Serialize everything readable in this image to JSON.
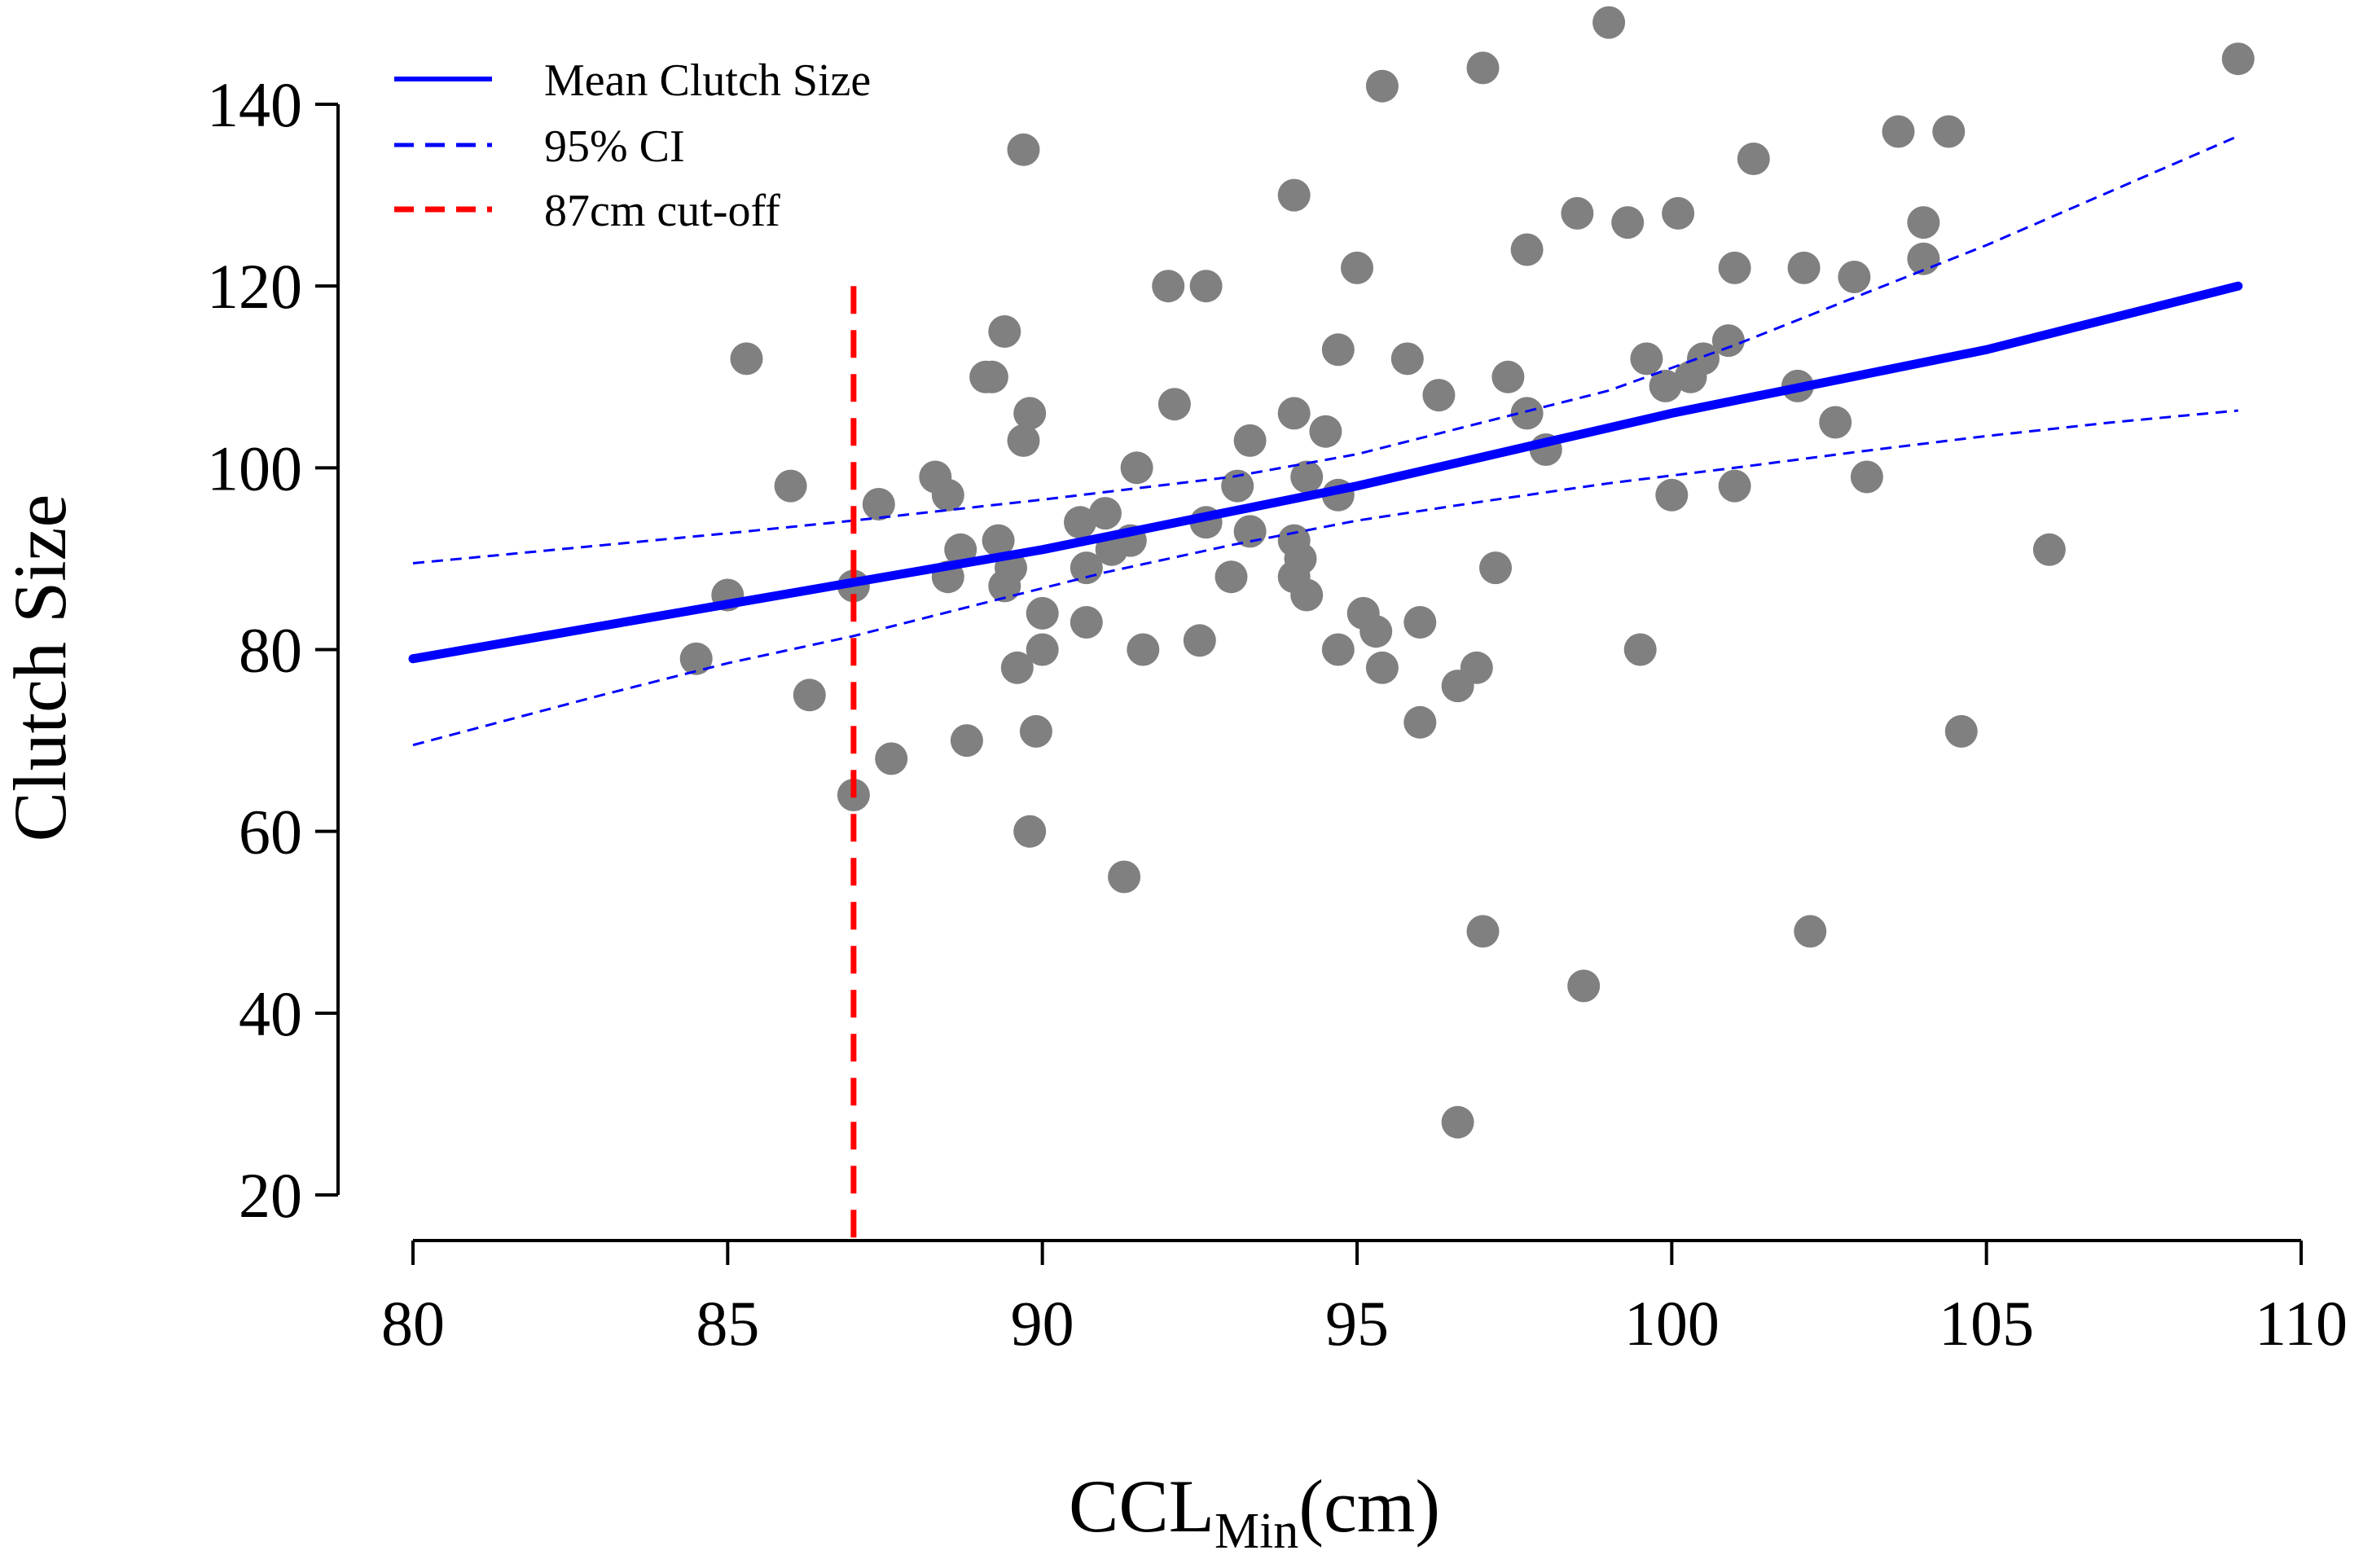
{
  "chart_data": {
    "type": "scatter",
    "xlabel": "CCL",
    "xlabel_subscript": "Min",
    "xlabel_suffix": "(cm)",
    "ylabel": "Clutch Size",
    "xlim": [
      80,
      110
    ],
    "ylim": [
      20,
      145
    ],
    "x_ticks": [
      80,
      85,
      90,
      95,
      100,
      105,
      110
    ],
    "y_ticks": [
      20,
      40,
      60,
      80,
      100,
      120,
      140
    ],
    "grid": false,
    "legend_position": "top-left",
    "legend": [
      {
        "label": "Mean Clutch Size",
        "style": "solid",
        "color": "#0000ff"
      },
      {
        "label": "95% CI",
        "style": "dashed",
        "color": "#0000ff"
      },
      {
        "label": "87cm cut-off",
        "style": "dashed",
        "color": "#ff0000"
      }
    ],
    "colors": {
      "points": "#808080",
      "mean": "#0000ff",
      "ci": "#0000ff",
      "cutoff": "#ff0000"
    },
    "points": [
      {
        "x": 84.5,
        "y": 79
      },
      {
        "x": 85.0,
        "y": 86
      },
      {
        "x": 85.3,
        "y": 112
      },
      {
        "x": 86.0,
        "y": 98
      },
      {
        "x": 86.3,
        "y": 75
      },
      {
        "x": 87.0,
        "y": 87
      },
      {
        "x": 87.0,
        "y": 64
      },
      {
        "x": 87.4,
        "y": 96
      },
      {
        "x": 87.6,
        "y": 68
      },
      {
        "x": 88.3,
        "y": 99
      },
      {
        "x": 88.5,
        "y": 97
      },
      {
        "x": 88.5,
        "y": 88
      },
      {
        "x": 88.7,
        "y": 91
      },
      {
        "x": 88.8,
        "y": 70
      },
      {
        "x": 89.1,
        "y": 110
      },
      {
        "x": 89.2,
        "y": 110
      },
      {
        "x": 89.3,
        "y": 92
      },
      {
        "x": 89.4,
        "y": 87
      },
      {
        "x": 89.4,
        "y": 115
      },
      {
        "x": 89.5,
        "y": 89
      },
      {
        "x": 89.6,
        "y": 78
      },
      {
        "x": 89.7,
        "y": 103
      },
      {
        "x": 89.7,
        "y": 135
      },
      {
        "x": 89.8,
        "y": 106
      },
      {
        "x": 89.8,
        "y": 60
      },
      {
        "x": 89.9,
        "y": 71
      },
      {
        "x": 90.0,
        "y": 84
      },
      {
        "x": 90.0,
        "y": 80
      },
      {
        "x": 90.6,
        "y": 94
      },
      {
        "x": 90.7,
        "y": 89
      },
      {
        "x": 90.7,
        "y": 83
      },
      {
        "x": 91.0,
        "y": 95
      },
      {
        "x": 91.1,
        "y": 91
      },
      {
        "x": 91.3,
        "y": 55
      },
      {
        "x": 91.4,
        "y": 92
      },
      {
        "x": 91.5,
        "y": 100
      },
      {
        "x": 91.6,
        "y": 80
      },
      {
        "x": 92.0,
        "y": 120
      },
      {
        "x": 92.1,
        "y": 107
      },
      {
        "x": 92.5,
        "y": 81
      },
      {
        "x": 92.6,
        "y": 120
      },
      {
        "x": 92.6,
        "y": 94
      },
      {
        "x": 93.0,
        "y": 88
      },
      {
        "x": 93.1,
        "y": 98
      },
      {
        "x": 93.3,
        "y": 103
      },
      {
        "x": 93.3,
        "y": 93
      },
      {
        "x": 94.0,
        "y": 130
      },
      {
        "x": 94.0,
        "y": 106
      },
      {
        "x": 94.0,
        "y": 92
      },
      {
        "x": 94.0,
        "y": 88
      },
      {
        "x": 94.1,
        "y": 90
      },
      {
        "x": 94.2,
        "y": 99
      },
      {
        "x": 94.2,
        "y": 86
      },
      {
        "x": 94.5,
        "y": 104
      },
      {
        "x": 94.7,
        "y": 113
      },
      {
        "x": 94.7,
        "y": 97
      },
      {
        "x": 94.7,
        "y": 80
      },
      {
        "x": 95.0,
        "y": 122
      },
      {
        "x": 95.1,
        "y": 84
      },
      {
        "x": 95.3,
        "y": 82
      },
      {
        "x": 95.4,
        "y": 78
      },
      {
        "x": 95.4,
        "y": 142
      },
      {
        "x": 95.8,
        "y": 112
      },
      {
        "x": 96.0,
        "y": 83
      },
      {
        "x": 96.0,
        "y": 72
      },
      {
        "x": 96.3,
        "y": 108
      },
      {
        "x": 96.6,
        "y": 76
      },
      {
        "x": 96.6,
        "y": 28
      },
      {
        "x": 96.9,
        "y": 78
      },
      {
        "x": 97.0,
        "y": 144
      },
      {
        "x": 97.0,
        "y": 49
      },
      {
        "x": 97.2,
        "y": 89
      },
      {
        "x": 97.4,
        "y": 110
      },
      {
        "x": 97.7,
        "y": 124
      },
      {
        "x": 97.7,
        "y": 106
      },
      {
        "x": 98.0,
        "y": 102
      },
      {
        "x": 98.5,
        "y": 128
      },
      {
        "x": 98.6,
        "y": 43
      },
      {
        "x": 99.0,
        "y": 149
      },
      {
        "x": 99.3,
        "y": 127
      },
      {
        "x": 99.5,
        "y": 80
      },
      {
        "x": 99.6,
        "y": 112
      },
      {
        "x": 99.9,
        "y": 109
      },
      {
        "x": 100.0,
        "y": 97
      },
      {
        "x": 100.1,
        "y": 128
      },
      {
        "x": 100.3,
        "y": 110
      },
      {
        "x": 100.5,
        "y": 112
      },
      {
        "x": 100.9,
        "y": 114
      },
      {
        "x": 101.0,
        "y": 122
      },
      {
        "x": 101.0,
        "y": 98
      },
      {
        "x": 101.3,
        "y": 134
      },
      {
        "x": 102.0,
        "y": 109
      },
      {
        "x": 102.1,
        "y": 122
      },
      {
        "x": 102.2,
        "y": 49
      },
      {
        "x": 102.6,
        "y": 105
      },
      {
        "x": 102.9,
        "y": 121
      },
      {
        "x": 103.1,
        "y": 99
      },
      {
        "x": 103.6,
        "y": 137
      },
      {
        "x": 104.0,
        "y": 127
      },
      {
        "x": 104.0,
        "y": 123
      },
      {
        "x": 104.4,
        "y": 137
      },
      {
        "x": 104.6,
        "y": 71
      },
      {
        "x": 106.0,
        "y": 91
      },
      {
        "x": 109.0,
        "y": 145
      }
    ],
    "mean_line": [
      {
        "x": 80,
        "y": 79
      },
      {
        "x": 85,
        "y": 85
      },
      {
        "x": 90,
        "y": 91
      },
      {
        "x": 95,
        "y": 98
      },
      {
        "x": 100,
        "y": 106
      },
      {
        "x": 105,
        "y": 113
      },
      {
        "x": 109,
        "y": 120
      }
    ],
    "ci_upper": [
      {
        "x": 80,
        "y": 89.5
      },
      {
        "x": 85,
        "y": 92.8
      },
      {
        "x": 87,
        "y": 94.2
      },
      {
        "x": 90,
        "y": 96.5
      },
      {
        "x": 93,
        "y": 99
      },
      {
        "x": 95,
        "y": 101.5
      },
      {
        "x": 97,
        "y": 105
      },
      {
        "x": 99,
        "y": 108.5
      },
      {
        "x": 101,
        "y": 113.5
      },
      {
        "x": 103,
        "y": 119
      },
      {
        "x": 105,
        "y": 124.5
      },
      {
        "x": 107,
        "y": 130.5
      },
      {
        "x": 109,
        "y": 136.5
      }
    ],
    "ci_lower": [
      {
        "x": 80,
        "y": 69.5
      },
      {
        "x": 83,
        "y": 75
      },
      {
        "x": 85,
        "y": 78.5
      },
      {
        "x": 87,
        "y": 81.5
      },
      {
        "x": 89,
        "y": 85
      },
      {
        "x": 91,
        "y": 88.5
      },
      {
        "x": 93,
        "y": 91.5
      },
      {
        "x": 95,
        "y": 94.2
      },
      {
        "x": 97,
        "y": 96.3
      },
      {
        "x": 99,
        "y": 98.3
      },
      {
        "x": 101,
        "y": 100
      },
      {
        "x": 103,
        "y": 101.8
      },
      {
        "x": 105,
        "y": 103.5
      },
      {
        "x": 107,
        "y": 105
      },
      {
        "x": 109,
        "y": 106.3
      }
    ],
    "cutoff": {
      "x": 87,
      "y_range": [
        15,
        120
      ]
    }
  }
}
